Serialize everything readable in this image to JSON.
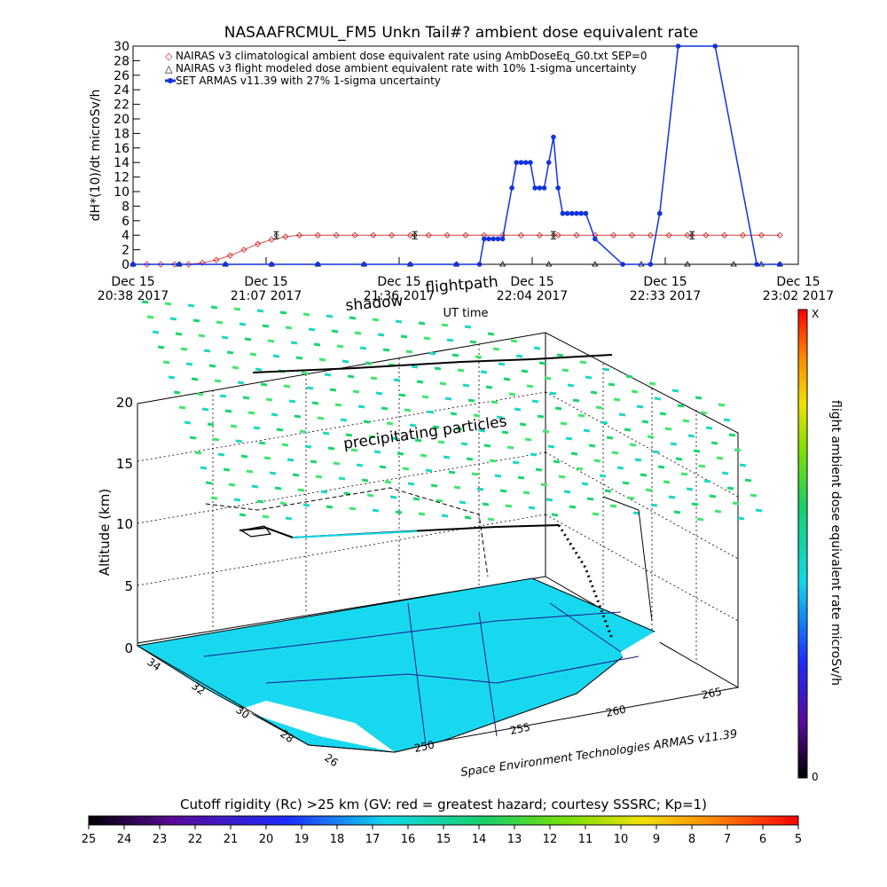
{
  "chart_data": [
    {
      "type": "line",
      "title": "NASAAFRCMUL_FM5 Unkn Tail#? ambient dose equivalent rate",
      "ylabel": "dH*(10)/dt microSv/h",
      "xlabel": "UT time",
      "ylim": [
        0,
        30
      ],
      "y_ticks": [
        0,
        2,
        4,
        6,
        8,
        10,
        12,
        14,
        16,
        18,
        20,
        22,
        24,
        26,
        28,
        30
      ],
      "x_tick_labels": [
        {
          "date": "Dec 15",
          "time": "20:38 2017"
        },
        {
          "date": "Dec 15",
          "time": "21:07 2017"
        },
        {
          "date": "Dec 15",
          "time": "21:36 2017"
        },
        {
          "date": "Dec 15",
          "time": "22:04 2017"
        },
        {
          "date": "Dec 15",
          "time": "22:33 2017"
        },
        {
          "date": "Dec 15",
          "time": "23:02 2017"
        }
      ],
      "xlim_minutes": [
        0,
        144
      ],
      "legend_position": "top-left",
      "series": [
        {
          "name": "NAIRAS v3 climatological ambient dose equivalent rate using AmbDoseEq_G0.txt SEP=0",
          "marker": "diamond",
          "color": "#cc2222",
          "x": [
            0,
            3,
            6,
            9,
            12,
            15,
            18,
            21,
            24,
            27,
            30,
            33,
            36,
            40,
            44,
            48,
            52,
            56,
            60,
            64,
            68,
            72,
            76,
            80,
            84,
            88,
            92,
            96,
            100,
            104,
            108,
            112,
            116,
            120,
            124,
            128,
            132,
            136,
            140
          ],
          "values": [
            0,
            0,
            0,
            0,
            0,
            0.2,
            0.6,
            1.2,
            2.0,
            2.8,
            3.4,
            3.8,
            4.0,
            4,
            4,
            4,
            4,
            4,
            4,
            4,
            4,
            4,
            4,
            4,
            4,
            4,
            4,
            4,
            4,
            4,
            4,
            4,
            4,
            4,
            4,
            4,
            4,
            4,
            4
          ]
        },
        {
          "name": "NAIRAS v3 flight modeled dose ambient equivalent rate with 10% 1-sigma uncertainty",
          "marker": "triangle",
          "color": "#000000",
          "x": [
            0,
            10,
            20,
            30,
            40,
            50,
            60,
            70,
            80,
            90,
            100,
            110,
            120,
            130,
            136,
            140
          ],
          "values": [
            0,
            0,
            0,
            0,
            0,
            0,
            0,
            0,
            0,
            0,
            0,
            0,
            0,
            0,
            0,
            0
          ]
        },
        {
          "name": "SET ARMAS v11.39 with 27% 1-sigma uncertainty",
          "marker": "circle",
          "color": "#1133dd",
          "x": [
            0,
            10,
            20,
            30,
            40,
            50,
            60,
            70,
            75,
            76,
            77,
            78,
            79,
            80,
            82,
            83,
            84,
            85,
            86,
            87,
            88,
            89,
            90,
            91,
            92,
            93,
            94,
            95,
            96,
            97,
            98,
            100,
            106,
            112,
            114,
            118,
            126,
            135,
            140
          ],
          "values": [
            0,
            0,
            0,
            0,
            0,
            0,
            0,
            0,
            0,
            3.5,
            3.5,
            3.5,
            3.5,
            3.5,
            10.5,
            14,
            14,
            14,
            14,
            10.5,
            10.5,
            10.5,
            14,
            17.5,
            10.5,
            7,
            7,
            7,
            7,
            7,
            7,
            3.5,
            0,
            0,
            7,
            30,
            30,
            0,
            0
          ]
        }
      ],
      "error_bar_markers": [
        {
          "x": 31,
          "y": 4
        },
        {
          "x": 61,
          "y": 4
        },
        {
          "x": 91,
          "y": 4
        },
        {
          "x": 121,
          "y": 4
        }
      ]
    },
    {
      "type": "scatter",
      "title": "",
      "zlabel": "Altitude (km)",
      "z_ticks": [
        0,
        5,
        10,
        15,
        20
      ],
      "lat_ticks": [
        34,
        32,
        30,
        28,
        26
      ],
      "lon_ticks": [
        250,
        255,
        260,
        265
      ],
      "annotations": [
        "shadow",
        "flightpath",
        "precipitating particles"
      ],
      "credit": "Space Environment Technologies ARMAS v11.39",
      "colorbar": {
        "label": "flight ambient dose equivalent rate microSv/h",
        "max_label": "X",
        "min_label": "0"
      }
    },
    {
      "type": "heatmap",
      "title": "Cutoff rigidity (Rc) >25 km (GV: red = greatest hazard; courtesy SSSRC; Kp=1)",
      "ticks": [
        25,
        24,
        23,
        22,
        21,
        20,
        19,
        18,
        17,
        16,
        15,
        14,
        13,
        12,
        11,
        10,
        9,
        8,
        7,
        6,
        5
      ]
    }
  ]
}
